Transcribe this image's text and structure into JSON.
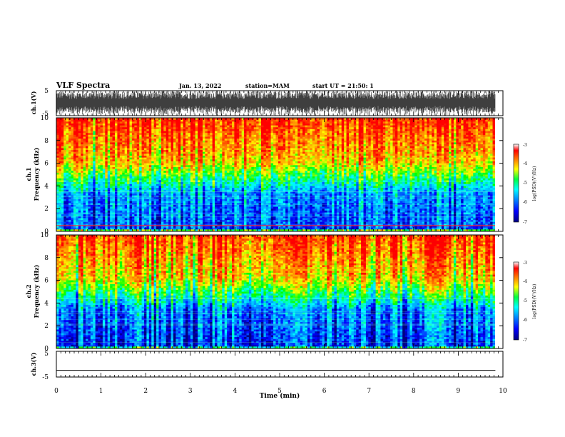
{
  "header": {
    "title": "VLF Spectra",
    "date": "Jan. 13, 2022",
    "station": "station=MAM",
    "start": "start UT =  21:50: 1"
  },
  "colors": {
    "spectrogram_colormap": [
      "#000080",
      "#0000ff",
      "#00a0ff",
      "#00ffff",
      "#00ff00",
      "#ffff00",
      "#ff8000",
      "#ff0000"
    ],
    "trace_color": "#000000"
  },
  "chart_data": [
    {
      "type": "line",
      "panel": "ch1_waveform",
      "ylabel": "ch.1(V)",
      "ylim": [
        -5,
        5
      ],
      "yticks": [
        "5",
        "-5"
      ],
      "xlim": [
        0,
        10
      ],
      "description_values": {
        "amplitude_range": [
          -5,
          5
        ]
      }
    },
    {
      "type": "heatmap",
      "panel": "ch1_spectrogram",
      "ylabel": "ch.1\nFrequency (kHz)",
      "ylim": [
        0,
        10
      ],
      "yticks": [
        "0",
        "2",
        "4",
        "6",
        "8",
        "10"
      ],
      "xlim": [
        0,
        9.83
      ],
      "colorbar": {
        "label": "log(PSD)(V²/Hz)",
        "range": [
          -7,
          -3
        ],
        "ticks": [
          "-3",
          "-4",
          "-5",
          "-6",
          "-7"
        ]
      }
    },
    {
      "type": "heatmap",
      "panel": "ch2_spectrogram",
      "ylabel": "ch.2\nFrequency (kHz)",
      "ylim": [
        0,
        10
      ],
      "yticks": [
        "0",
        "2",
        "4",
        "6",
        "8",
        "10"
      ],
      "xlim": [
        0,
        9.83
      ],
      "colorbar": {
        "label": "log(PSD)(V²/Hz)",
        "range": [
          -7,
          -3
        ],
        "ticks": [
          "-3",
          "-4",
          "-5",
          "-6",
          "-7"
        ]
      }
    },
    {
      "type": "line",
      "panel": "ch3_waveform",
      "ylabel": "ch.3(V)",
      "ylim": [
        -5,
        5
      ],
      "yticks": [
        "5",
        "-5"
      ],
      "xlim": [
        0,
        10
      ],
      "series": [
        {
          "x": [
            0,
            9.83
          ],
          "y": [
            -2.4,
            -2.4
          ]
        }
      ]
    }
  ],
  "xaxis": {
    "label": "Time (min)",
    "range": [
      0,
      10
    ],
    "ticks": [
      "0",
      "1",
      "2",
      "3",
      "4",
      "5",
      "6",
      "7",
      "8",
      "9",
      "10"
    ]
  }
}
